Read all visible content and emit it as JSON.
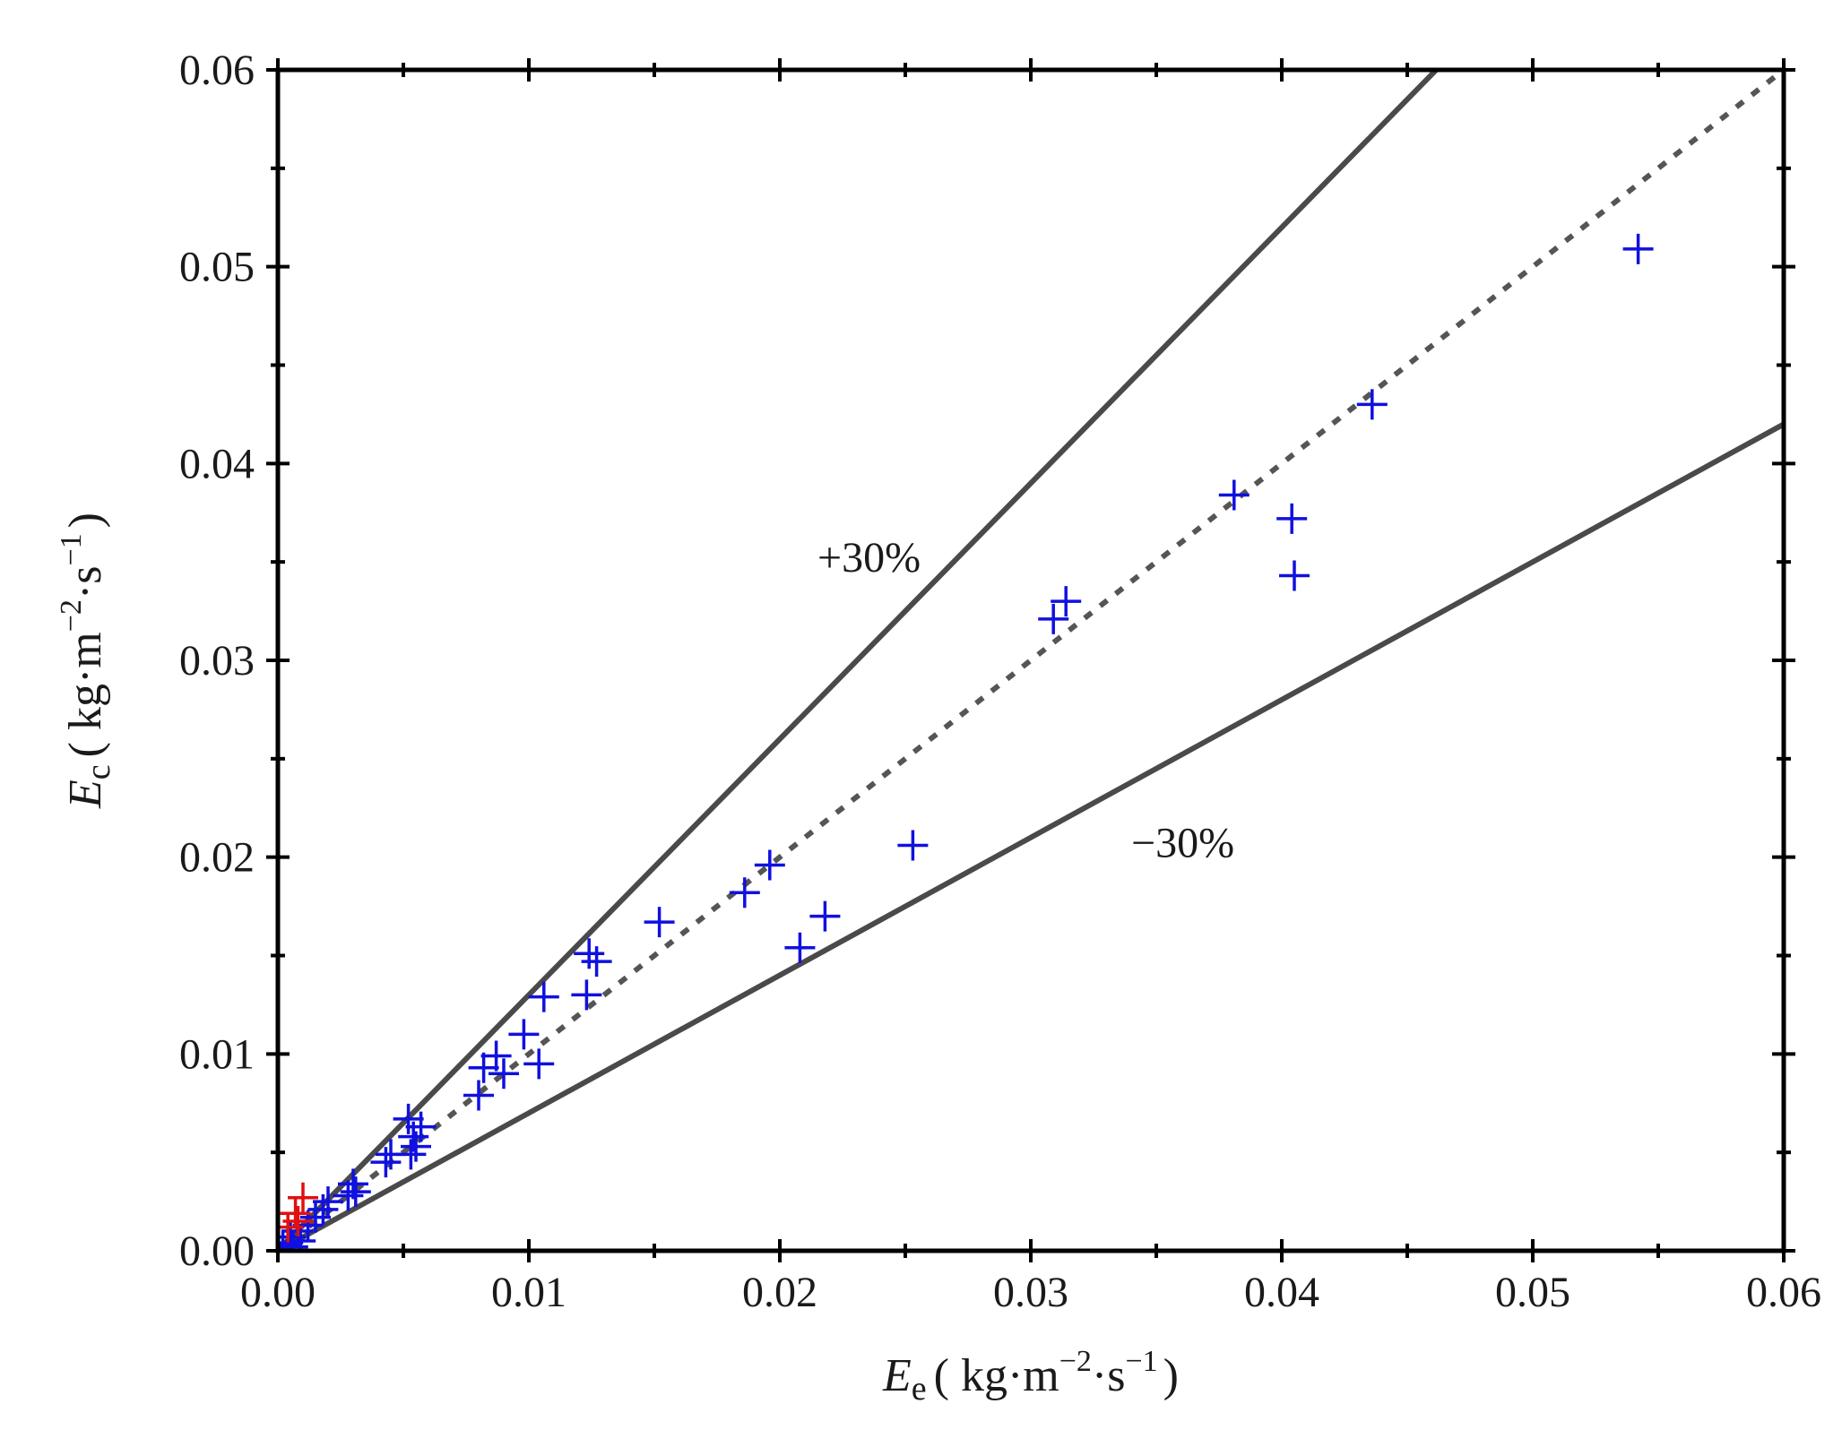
{
  "chart_data": {
    "type": "scatter",
    "x_axis": {
      "symbol": "E",
      "subscript": "e",
      "unit_open": "( kg·m",
      "unit_exp1": "−2",
      "unit_mid": "·s",
      "unit_exp2": "−1",
      "unit_close": ")",
      "range": [
        0,
        0.06
      ],
      "ticks": [
        0,
        0.01,
        0.02,
        0.03,
        0.04,
        0.05,
        0.06
      ],
      "tick_labels": [
        "0.00",
        "0.01",
        "0.02",
        "0.03",
        "0.04",
        "0.05",
        "0.06"
      ]
    },
    "y_axis": {
      "symbol": "E",
      "subscript": "c",
      "unit_open": "( kg·m",
      "unit_exp1": "−2",
      "unit_mid": "·s",
      "unit_exp2": "−1",
      "unit_close": ")",
      "range": [
        0,
        0.06
      ],
      "ticks": [
        0,
        0.01,
        0.02,
        0.03,
        0.04,
        0.05,
        0.06
      ],
      "tick_labels": [
        "0.00",
        "0.01",
        "0.02",
        "0.03",
        "0.04",
        "0.05",
        "0.06"
      ]
    },
    "reference_lines": [
      {
        "name": "identity",
        "slope": 1.0,
        "style": "dotted",
        "color": "#555555"
      },
      {
        "name": "plus-30",
        "slope": 1.3,
        "style": "solid",
        "color": "#4a4a4a"
      },
      {
        "name": "minus-30",
        "slope": 0.7,
        "style": "solid",
        "color": "#4a4a4a"
      }
    ],
    "annotations": [
      {
        "text": "+30%",
        "x": 0.0215,
        "y": 0.0345
      },
      {
        "text": "−30%",
        "x": 0.034,
        "y": 0.02
      }
    ],
    "series": [
      {
        "name": "blue",
        "color": "#1010e0",
        "marker": "+",
        "points": [
          [
            0.0542,
            0.0509
          ],
          [
            0.0436,
            0.043
          ],
          [
            0.0381,
            0.0384
          ],
          [
            0.0404,
            0.0372
          ],
          [
            0.0405,
            0.0343
          ],
          [
            0.0314,
            0.033
          ],
          [
            0.0309,
            0.0321
          ],
          [
            0.0253,
            0.0206
          ],
          [
            0.0196,
            0.0196
          ],
          [
            0.0186,
            0.0182
          ],
          [
            0.0218,
            0.017
          ],
          [
            0.0208,
            0.0154
          ],
          [
            0.0152,
            0.0167
          ],
          [
            0.0124,
            0.0151
          ],
          [
            0.0127,
            0.0147
          ],
          [
            0.0123,
            0.013
          ],
          [
            0.0106,
            0.0129
          ],
          [
            0.0098,
            0.011
          ],
          [
            0.0104,
            0.0095
          ],
          [
            0.0087,
            0.0099
          ],
          [
            0.0082,
            0.0093
          ],
          [
            0.009,
            0.009
          ],
          [
            0.008,
            0.0079
          ],
          [
            0.0052,
            0.0067
          ],
          [
            0.0057,
            0.0063
          ],
          [
            0.0054,
            0.0058
          ],
          [
            0.0055,
            0.0053
          ],
          [
            0.0053,
            0.0049
          ],
          [
            0.0045,
            0.0049
          ],
          [
            0.0043,
            0.0045
          ],
          [
            0.003,
            0.0034
          ],
          [
            0.0031,
            0.003
          ],
          [
            0.0028,
            0.0028
          ],
          [
            0.002,
            0.0025
          ],
          [
            0.0018,
            0.0021
          ],
          [
            0.0015,
            0.0017
          ],
          [
            0.0012,
            0.0013
          ],
          [
            0.0008,
            0.001
          ],
          [
            0.0005,
            0.0007
          ],
          [
            0.0004,
            0.0004
          ],
          [
            0.0006,
            0.0002
          ],
          [
            0.0002,
            0.0003
          ],
          [
            0.0009,
            0.0005
          ]
        ]
      },
      {
        "name": "red",
        "color": "#e01010",
        "marker": "+",
        "points": [
          [
            0.001,
            0.0027
          ],
          [
            0.0007,
            0.0019
          ],
          [
            0.0004,
            0.0012
          ],
          [
            0.0008,
            0.0015
          ]
        ]
      }
    ]
  }
}
